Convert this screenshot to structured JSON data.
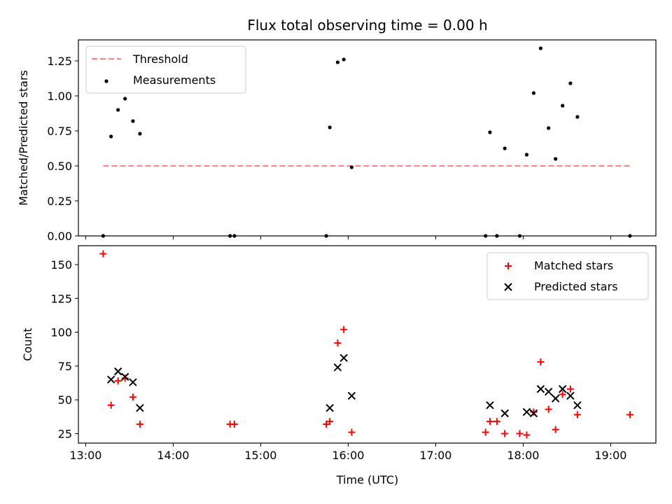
{
  "chart_data": {
    "title": "Flux total observing time = 0.00 h",
    "xlabel": "Time (UTC)",
    "x_ticks": [
      "13:00",
      "14:00",
      "15:00",
      "16:00",
      "17:00",
      "18:00",
      "19:00"
    ],
    "xlim_hours": [
      12.9167,
      19.5167
    ],
    "top": {
      "type": "scatter",
      "ylabel": "Matched/Predicted stars",
      "ylim": [
        0,
        1.4
      ],
      "y_ticks": [
        "0.00",
        "0.25",
        "0.50",
        "0.75",
        "1.00",
        "1.25"
      ],
      "legend_placement": "upper-left",
      "threshold": {
        "name": "Threshold",
        "value": 0.5,
        "x_range_hours": [
          13.2,
          19.22
        ],
        "color": "#ff8080"
      },
      "measurements": {
        "name": "Measurements",
        "color": "#000000",
        "points": [
          [
            13.2,
            0.0
          ],
          [
            13.29,
            0.71
          ],
          [
            13.37,
            0.9
          ],
          [
            13.45,
            0.98
          ],
          [
            13.54,
            0.82
          ],
          [
            13.62,
            0.73
          ],
          [
            14.65,
            0.0
          ],
          [
            14.7,
            0.0
          ],
          [
            15.75,
            0.0
          ],
          [
            15.79,
            0.775
          ],
          [
            15.88,
            1.24
          ],
          [
            15.95,
            1.26
          ],
          [
            16.04,
            0.49
          ],
          [
            17.57,
            0.0
          ],
          [
            17.62,
            0.74
          ],
          [
            17.7,
            0.0
          ],
          [
            17.79,
            0.625
          ],
          [
            17.96,
            0.0
          ],
          [
            18.04,
            0.58
          ],
          [
            18.12,
            1.02
          ],
          [
            18.2,
            1.34
          ],
          [
            18.29,
            0.77
          ],
          [
            18.37,
            0.55
          ],
          [
            18.45,
            0.93
          ],
          [
            18.54,
            1.09
          ],
          [
            18.62,
            0.85
          ],
          [
            19.22,
            0.0
          ]
        ]
      }
    },
    "bottom": {
      "type": "scatter",
      "ylabel": "Count",
      "ylim": [
        18,
        164
      ],
      "y_ticks": [
        "25",
        "50",
        "75",
        "100",
        "125",
        "150"
      ],
      "legend_placement": "upper-right",
      "series": [
        {
          "name": "Matched stars",
          "marker": "plus",
          "color": "#ff0000",
          "points": [
            [
              13.2,
              158
            ],
            [
              13.29,
              46
            ],
            [
              13.37,
              64
            ],
            [
              13.45,
              66
            ],
            [
              13.54,
              52
            ],
            [
              13.62,
              32
            ],
            [
              14.65,
              32
            ],
            [
              14.7,
              32
            ],
            [
              15.75,
              32
            ],
            [
              15.79,
              34
            ],
            [
              15.88,
              92
            ],
            [
              15.95,
              102
            ],
            [
              16.04,
              26
            ],
            [
              17.57,
              26
            ],
            [
              17.62,
              34
            ],
            [
              17.7,
              34
            ],
            [
              17.79,
              25
            ],
            [
              17.96,
              25
            ],
            [
              18.04,
              24
            ],
            [
              18.12,
              41
            ],
            [
              18.2,
              78
            ],
            [
              18.29,
              43
            ],
            [
              18.37,
              28
            ],
            [
              18.45,
              54
            ],
            [
              18.54,
              58
            ],
            [
              18.62,
              39
            ],
            [
              19.22,
              39
            ]
          ]
        },
        {
          "name": "Predicted stars",
          "marker": "x",
          "color": "#000000",
          "points": [
            [
              13.29,
              65
            ],
            [
              13.37,
              71
            ],
            [
              13.45,
              67
            ],
            [
              13.54,
              63
            ],
            [
              13.62,
              44
            ],
            [
              15.79,
              44
            ],
            [
              15.88,
              74
            ],
            [
              15.95,
              81
            ],
            [
              16.04,
              53
            ],
            [
              17.62,
              46
            ],
            [
              17.79,
              40
            ],
            [
              18.04,
              41
            ],
            [
              18.12,
              40
            ],
            [
              18.2,
              58
            ],
            [
              18.29,
              56
            ],
            [
              18.37,
              51
            ],
            [
              18.45,
              58
            ],
            [
              18.54,
              53
            ],
            [
              18.62,
              46
            ]
          ]
        }
      ]
    }
  }
}
